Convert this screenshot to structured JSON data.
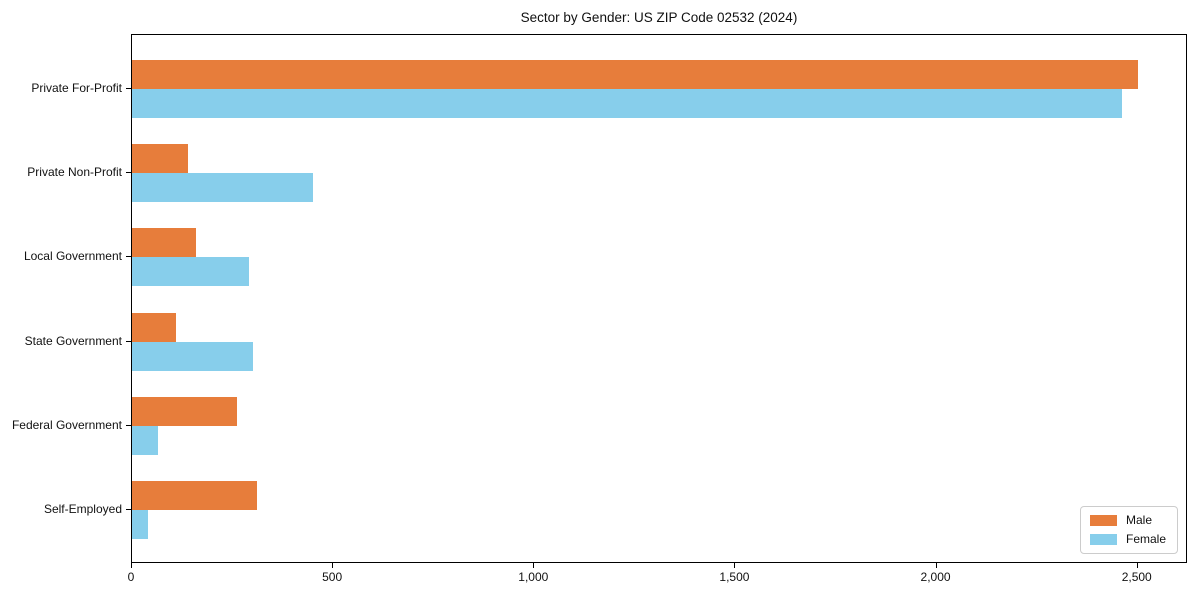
{
  "chart_data": {
    "type": "bar",
    "orientation": "horizontal",
    "title": "Sector by Gender: US ZIP Code 02532 (2024)",
    "categories": [
      "Private For-Profit",
      "Private Non-Profit",
      "Local Government",
      "State Government",
      "Federal Government",
      "Self-Employed"
    ],
    "series": [
      {
        "name": "Male",
        "color": "#E77D3B",
        "values": [
          2500,
          140,
          160,
          110,
          260,
          310
        ]
      },
      {
        "name": "Female",
        "color": "#87CEEB",
        "values": [
          2460,
          450,
          290,
          300,
          65,
          40
        ]
      }
    ],
    "xlabel": "",
    "ylabel": "",
    "xlim": [
      0,
      2625
    ],
    "x_ticks": [
      0,
      500,
      1000,
      1500,
      2000,
      2500
    ],
    "x_tick_labels": [
      "0",
      "500",
      "1,000",
      "1,500",
      "2,000",
      "2,500"
    ],
    "grid": false,
    "legend": {
      "position": "lower right"
    },
    "colors": {
      "axis": "#000000",
      "text": "#111111",
      "legend_border": "#cccccc"
    }
  }
}
